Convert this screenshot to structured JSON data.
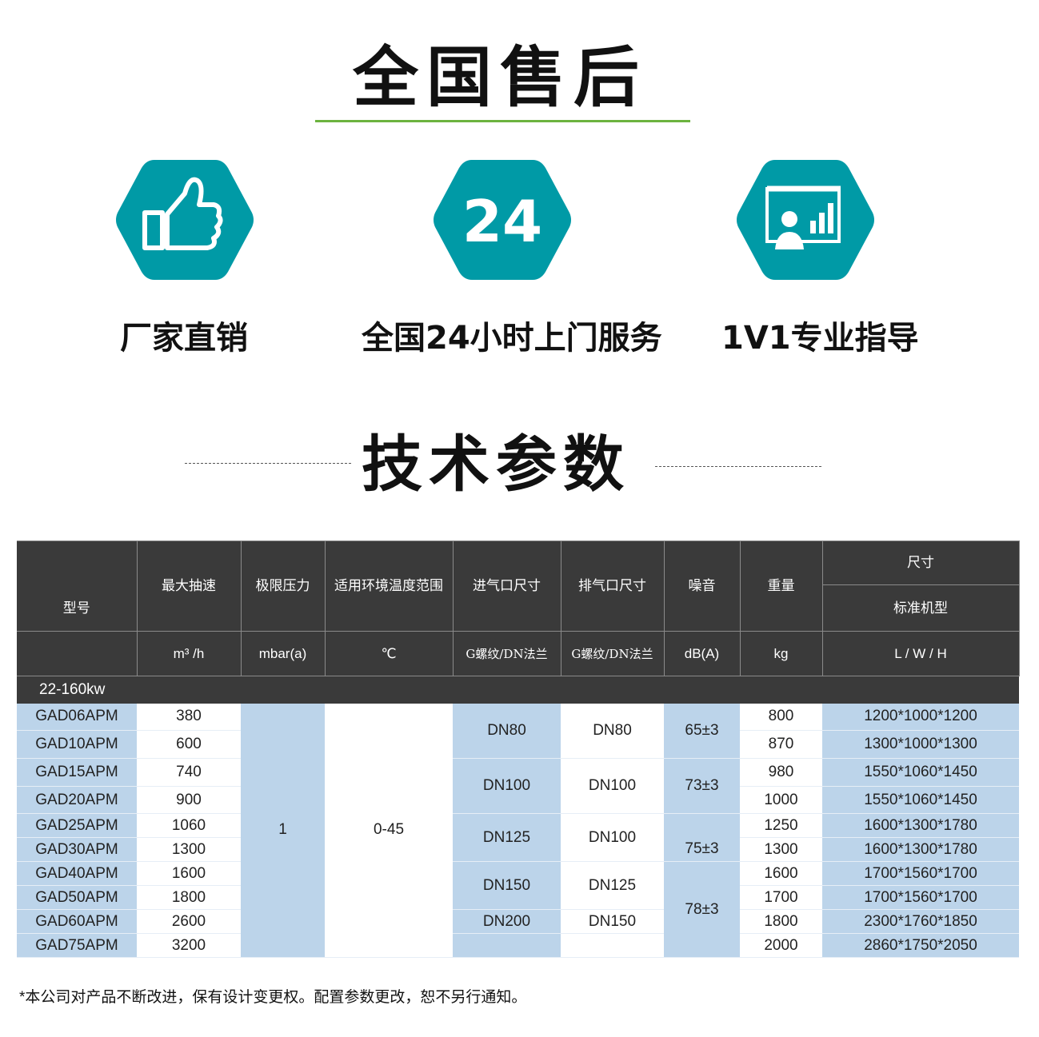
{
  "title": "全国售后",
  "colors": {
    "accent_green": "#6cb33f",
    "teal": "#009aa6",
    "header_dark": "#3a3a3a",
    "cell_blue": "#bcd4ea"
  },
  "features": [
    {
      "icon": "thumbs-up-icon",
      "label": "厂家直销"
    },
    {
      "icon": "24-hours-icon",
      "icon_text": "24",
      "label": "全国24小时上门服务"
    },
    {
      "icon": "presentation-icon",
      "label": "1V1专业指导"
    }
  ],
  "section_title": "技术参数",
  "table": {
    "headers": [
      "型号",
      "最大抽速",
      "极限压力",
      "适用环境温度范围",
      "进气口尺寸",
      "排气口尺寸",
      "噪音",
      "重量",
      "尺寸",
      "标准机型"
    ],
    "units": [
      "m³ /h",
      "mbar(a)",
      "℃",
      "G螺纹/DN法兰",
      "G螺纹/DN法兰",
      "dB(A)",
      "kg",
      "L / W / H"
    ],
    "group": "22-160kw",
    "pressure": "1",
    "temperature": "0-45",
    "inlet": [
      "DN80",
      "DN100",
      "DN125",
      "DN150",
      "DN200"
    ],
    "outlet": [
      "DN80",
      "DN100",
      "DN100",
      "DN125",
      "DN150"
    ],
    "noise": [
      "65±3",
      "73±3",
      "75±3",
      "78±3"
    ],
    "rows": [
      {
        "model": "GAD06APM",
        "speed": "380",
        "weight": "800",
        "size": "1200*1000*1200"
      },
      {
        "model": "GAD10APM",
        "speed": "600",
        "weight": "870",
        "size": "1300*1000*1300"
      },
      {
        "model": "GAD15APM",
        "speed": "740",
        "weight": "980",
        "size": "1550*1060*1450"
      },
      {
        "model": "GAD20APM",
        "speed": "900",
        "weight": "1000",
        "size": "1550*1060*1450"
      },
      {
        "model": "GAD25APM",
        "speed": "1060",
        "weight": "1250",
        "size": "1600*1300*1780"
      },
      {
        "model": "GAD30APM",
        "speed": "1300",
        "weight": "1300",
        "size": "1600*1300*1780"
      },
      {
        "model": "GAD40APM",
        "speed": "1600",
        "weight": "1600",
        "size": "1700*1560*1700"
      },
      {
        "model": "GAD50APM",
        "speed": "1800",
        "weight": "1700",
        "size": "1700*1560*1700"
      },
      {
        "model": "GAD60APM",
        "speed": "2600",
        "weight": "1800",
        "size": "2300*1760*1850"
      },
      {
        "model": "GAD75APM",
        "speed": "3200",
        "weight": "2000",
        "size": "2860*1750*2050"
      }
    ]
  },
  "note": "*本公司对产品不断改进，保有设计变更权。配置参数更改，恕不另行通知。"
}
